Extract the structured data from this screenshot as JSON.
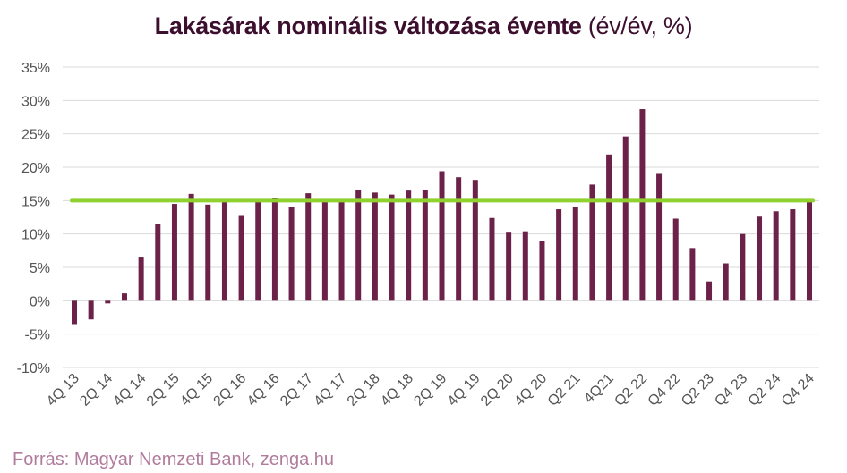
{
  "chart_data": {
    "type": "bar",
    "title": "Lakásárak nominális változása évente",
    "title_suffix": "(év/év, %)",
    "xlabel": "",
    "ylabel": "",
    "ylim": [
      -10,
      35
    ],
    "y_ticks": [
      "35%",
      "30%",
      "25%",
      "20%",
      "15%",
      "10%",
      "5%",
      "0%",
      "-5%",
      "-10%"
    ],
    "y_tick_values": [
      35,
      30,
      25,
      20,
      15,
      10,
      5,
      0,
      -5,
      -10
    ],
    "x_tick_labels": [
      "4Q 13",
      "2Q 14",
      "4Q 14",
      "2Q 15",
      "4Q 15",
      "2Q 16",
      "4Q 16",
      "2Q 17",
      "4Q 17",
      "2Q 18",
      "4Q 18",
      "2Q 19",
      "4Q 19",
      "2Q 20",
      "4Q 20",
      "Q2 21",
      "4Q21",
      "Q2 22",
      "Q4 22",
      "Q2 23",
      "Q4 23",
      "Q2 24",
      "Q4 24"
    ],
    "values": [
      -3.5,
      -2.8,
      -0.4,
      1.1,
      6.6,
      11.5,
      14.5,
      16.0,
      14.4,
      14.8,
      12.7,
      14.9,
      15.4,
      14.0,
      16.1,
      14.8,
      14.8,
      16.6,
      16.2,
      15.9,
      16.5,
      16.6,
      19.4,
      18.5,
      18.1,
      12.4,
      10.2,
      10.4,
      8.9,
      13.7,
      14.1,
      17.4,
      21.9,
      24.6,
      28.7,
      19.0,
      12.3,
      7.9,
      2.9,
      5.6,
      10.0,
      12.6,
      13.4,
      13.7,
      15.0
    ],
    "reference_line": 15,
    "grid": true,
    "colors": {
      "bar": "#6b2148",
      "reference": "#8fd12f",
      "grid": "#d9d9d9"
    }
  },
  "source": "Forrás: Magyar Nemzeti Bank, zenga.hu"
}
